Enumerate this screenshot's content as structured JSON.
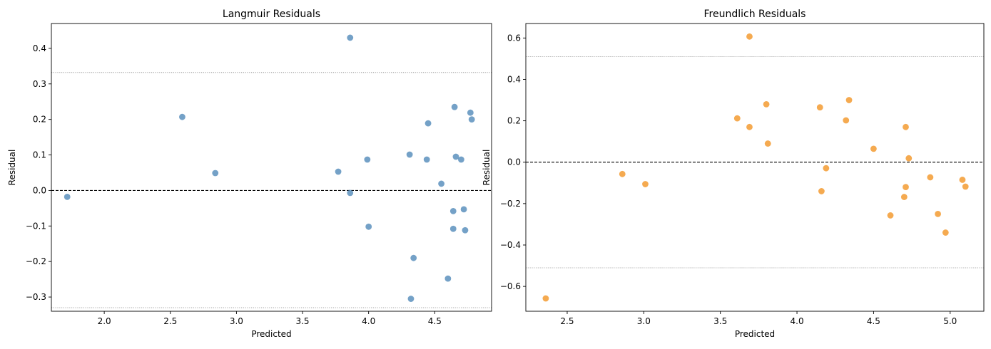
{
  "chart_data": [
    {
      "type": "scatter",
      "title": "Langmuir Residuals",
      "xlabel": "Predicted",
      "ylabel": "Residual",
      "xlim": [
        1.6,
        4.93
      ],
      "ylim": [
        -0.34,
        0.47
      ],
      "xticks": [
        2.0,
        2.5,
        3.0,
        3.5,
        4.0,
        4.5
      ],
      "xtick_labels": [
        "2.0",
        "2.5",
        "3.0",
        "3.5",
        "4.0",
        "4.5"
      ],
      "yticks": [
        -0.3,
        -0.2,
        -0.1,
        0.0,
        0.1,
        0.2,
        0.3,
        0.4
      ],
      "ytick_labels": [
        "−0.3",
        "−0.2",
        "−0.1",
        "0.0",
        "0.1",
        "0.2",
        "0.3",
        "0.4"
      ],
      "zero_line": 0.0,
      "bounds": [
        0.332,
        -0.33
      ],
      "grid": false,
      "color": "#4682b4",
      "points": [
        [
          1.72,
          -0.018
        ],
        [
          2.59,
          0.207
        ],
        [
          2.84,
          0.049
        ],
        [
          3.77,
          0.053
        ],
        [
          3.86,
          0.43
        ],
        [
          3.86,
          -0.007
        ],
        [
          3.99,
          0.087
        ],
        [
          4.0,
          -0.102
        ],
        [
          4.31,
          0.101
        ],
        [
          4.32,
          -0.305
        ],
        [
          4.34,
          -0.19
        ],
        [
          4.44,
          0.087
        ],
        [
          4.45,
          0.189
        ],
        [
          4.55,
          0.019
        ],
        [
          4.6,
          -0.248
        ],
        [
          4.64,
          -0.058
        ],
        [
          4.64,
          -0.108
        ],
        [
          4.65,
          0.235
        ],
        [
          4.66,
          0.095
        ],
        [
          4.7,
          0.087
        ],
        [
          4.72,
          -0.053
        ],
        [
          4.73,
          -0.112
        ],
        [
          4.77,
          0.219
        ],
        [
          4.78,
          0.2
        ]
      ]
    },
    {
      "type": "scatter",
      "title": "Freundlich Residuals",
      "xlabel": "Predicted",
      "ylabel": "Residual",
      "xlim": [
        2.23,
        5.22
      ],
      "ylim": [
        -0.72,
        0.67
      ],
      "xticks": [
        2.5,
        3.0,
        3.5,
        4.0,
        4.5,
        5.0
      ],
      "xtick_labels": [
        "2.5",
        "3.0",
        "3.5",
        "4.0",
        "4.5",
        "5.0"
      ],
      "yticks": [
        -0.6,
        -0.4,
        -0.2,
        0.0,
        0.2,
        0.4,
        0.6
      ],
      "ytick_labels": [
        "−0.6",
        "−0.4",
        "−0.2",
        "0.0",
        "0.2",
        "0.4",
        "0.6"
      ],
      "zero_line": 0.0,
      "bounds": [
        0.51,
        -0.51
      ],
      "grid": false,
      "color": "#f28e16",
      "points": [
        [
          2.36,
          -0.658
        ],
        [
          2.86,
          -0.057
        ],
        [
          3.01,
          -0.106
        ],
        [
          3.61,
          0.212
        ],
        [
          3.69,
          0.607
        ],
        [
          3.69,
          0.17
        ],
        [
          3.8,
          0.28
        ],
        [
          3.81,
          0.09
        ],
        [
          4.15,
          0.265
        ],
        [
          4.16,
          -0.14
        ],
        [
          4.19,
          -0.029
        ],
        [
          4.32,
          0.202
        ],
        [
          4.34,
          0.3
        ],
        [
          4.5,
          0.065
        ],
        [
          4.61,
          -0.257
        ],
        [
          4.7,
          -0.168
        ],
        [
          4.71,
          -0.12
        ],
        [
          4.71,
          0.17
        ],
        [
          4.73,
          0.019
        ],
        [
          4.87,
          -0.073
        ],
        [
          4.92,
          -0.25
        ],
        [
          4.97,
          -0.34
        ],
        [
          5.08,
          -0.085
        ],
        [
          5.1,
          -0.118
        ]
      ]
    }
  ]
}
